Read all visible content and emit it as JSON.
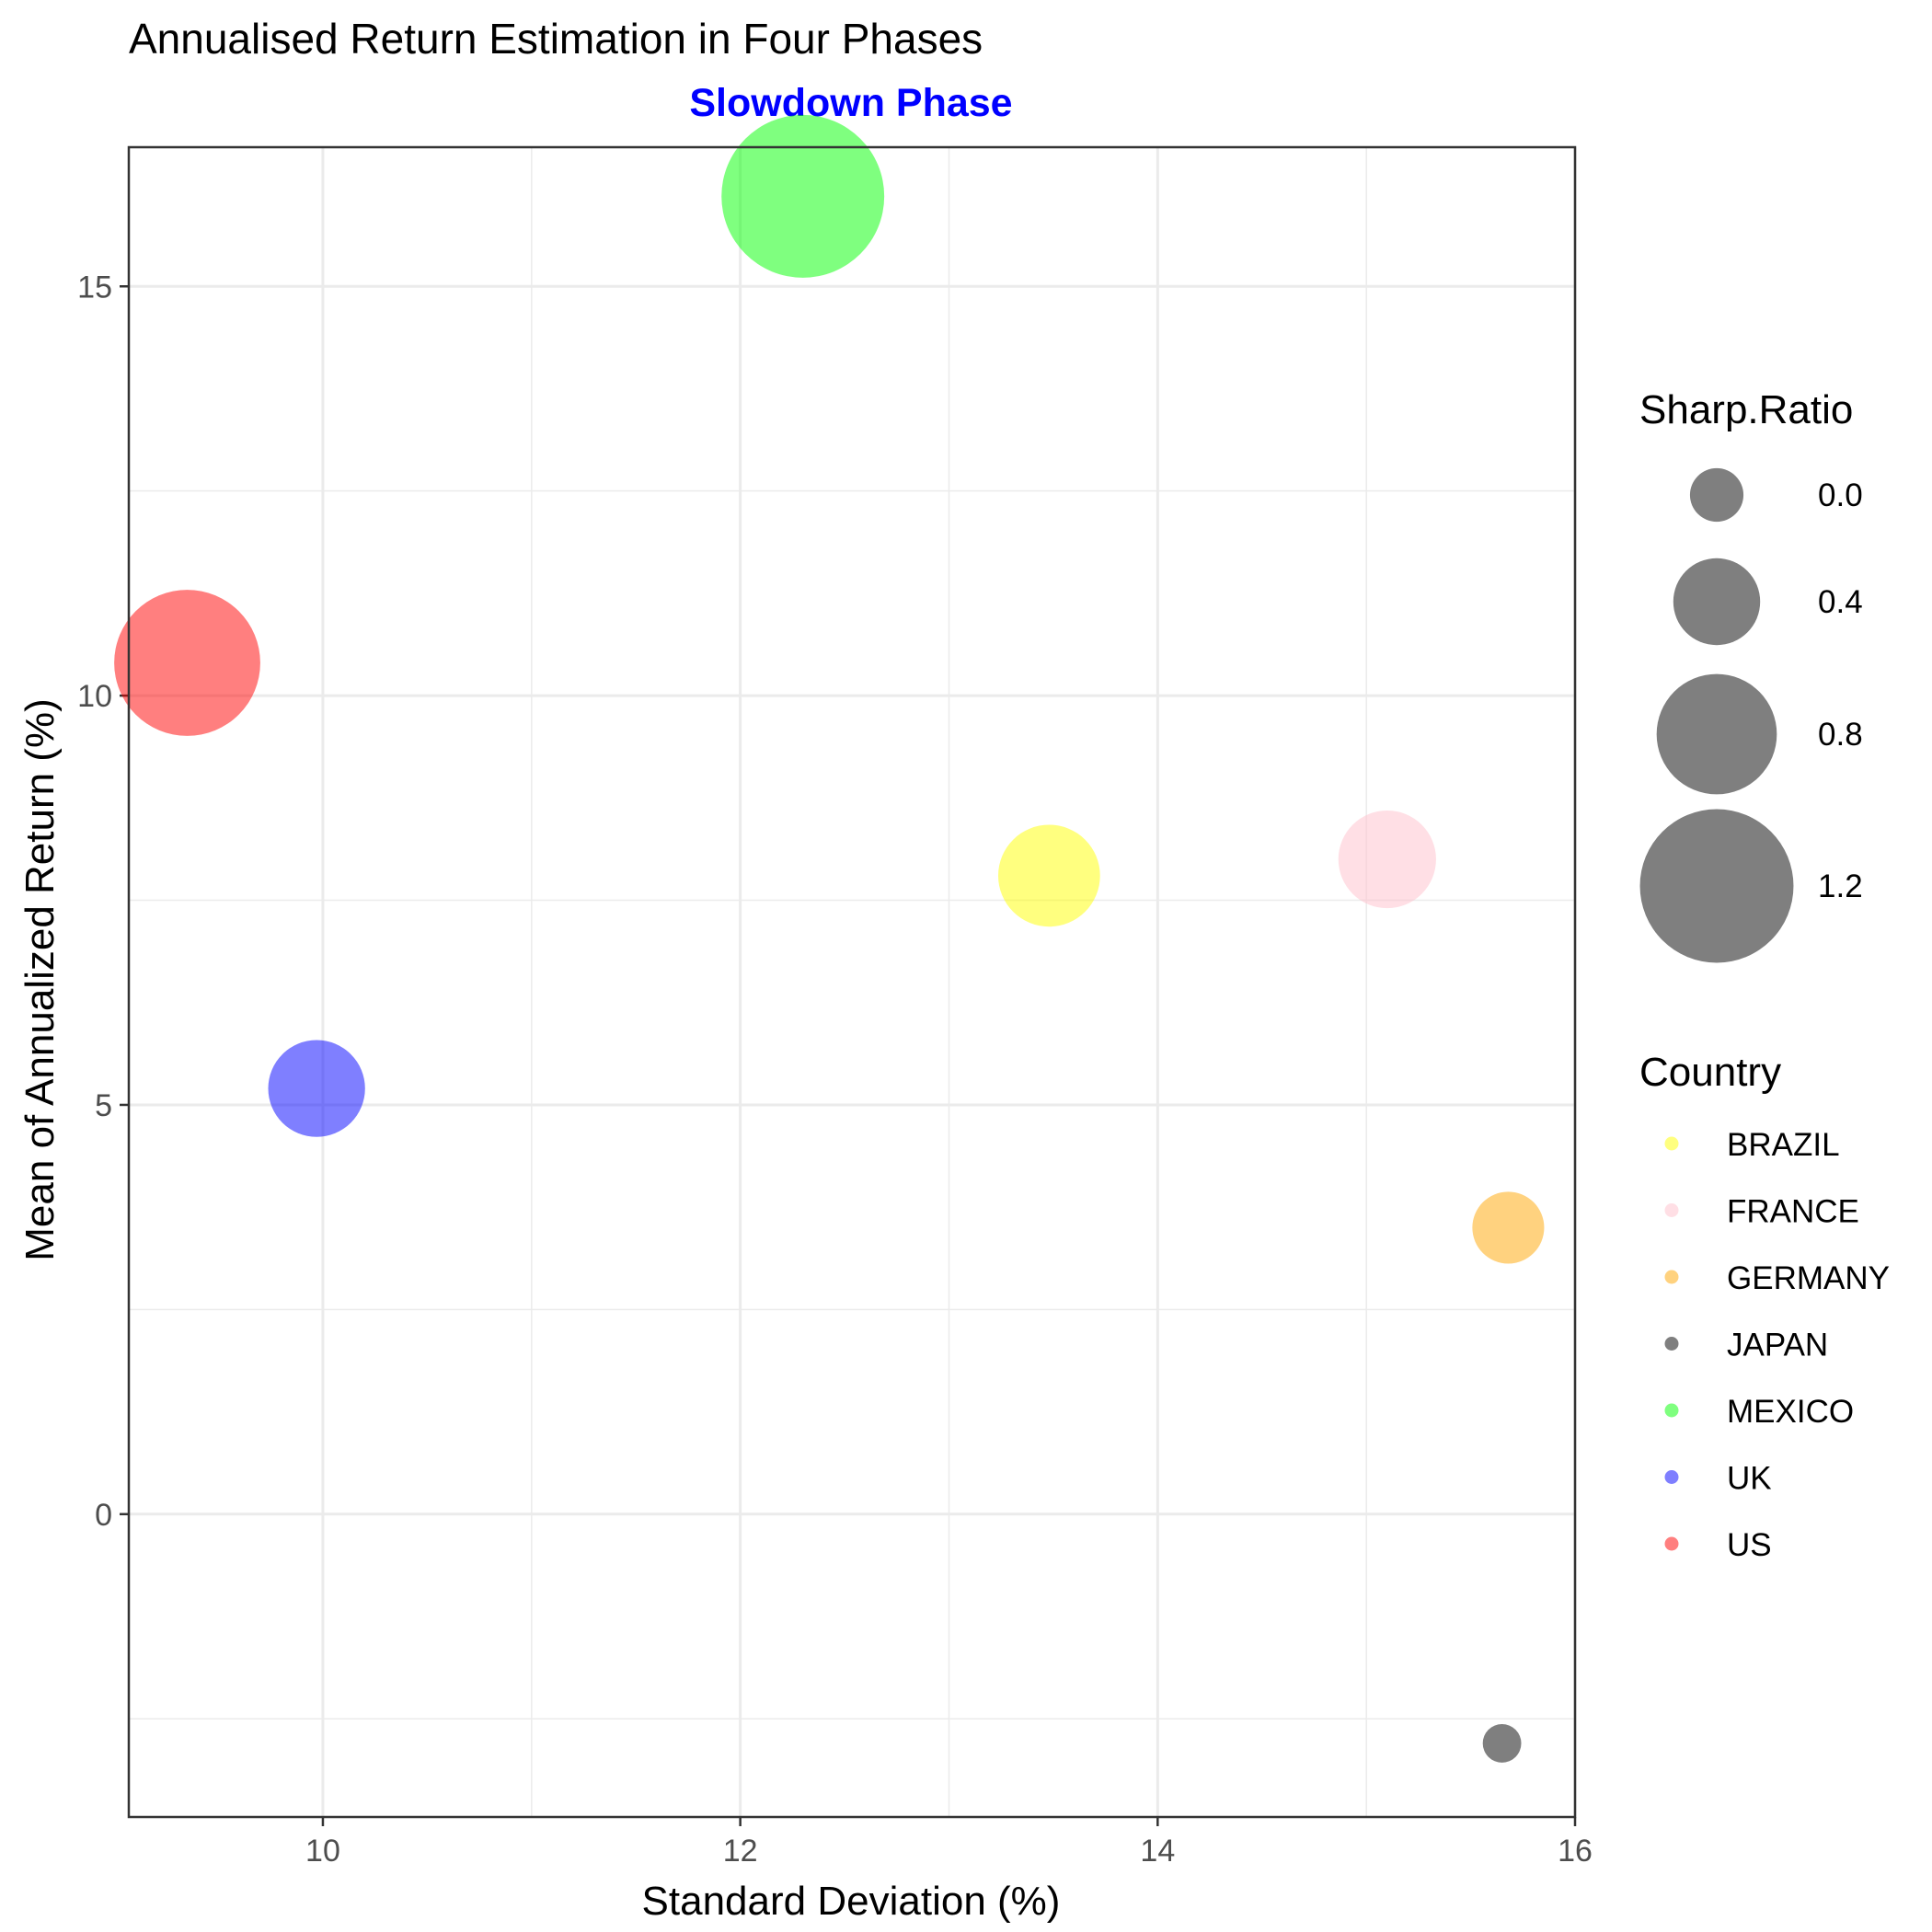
{
  "chart_data": {
    "type": "scatter",
    "title": "Annualised Return Estimation in Four Phases",
    "subtitle": "Slowdown Phase",
    "xlabel": "Standard Deviation (%)",
    "ylabel": "Mean of Annualized Return (%)",
    "xlim": [
      9.07,
      16.0
    ],
    "ylim": [
      -3.7,
      16.7
    ],
    "x_ticks": [
      10,
      12,
      14,
      16
    ],
    "y_ticks": [
      0,
      5,
      10,
      15
    ],
    "grid": true,
    "legend_position": "right",
    "size_legend": {
      "title": "Sharp.Ratio",
      "values": [
        0.0,
        0.4,
        0.8,
        1.2
      ],
      "labels": [
        "0.0",
        "0.4",
        "0.8",
        "1.2"
      ]
    },
    "color_legend": {
      "title": "Country",
      "entries": [
        {
          "label": "BRAZIL",
          "color": "#ffff00"
        },
        {
          "label": "FRANCE",
          "color": "#ffc0cb"
        },
        {
          "label": "GERMANY",
          "color": "#ffa500"
        },
        {
          "label": "JAPAN",
          "color": "#000000"
        },
        {
          "label": "MEXICO",
          "color": "#00ff00"
        },
        {
          "label": "UK",
          "color": "#0000ff"
        },
        {
          "label": "US",
          "color": "#ff0000"
        }
      ]
    },
    "points": [
      {
        "country": "BRAZIL",
        "x": 13.48,
        "y": 7.8,
        "sharp_ratio": 0.58
      },
      {
        "country": "FRANCE",
        "x": 15.1,
        "y": 8.0,
        "sharp_ratio": 0.53
      },
      {
        "country": "GERMANY",
        "x": 15.68,
        "y": 3.5,
        "sharp_ratio": 0.22
      },
      {
        "country": "JAPAN",
        "x": 15.65,
        "y": -2.8,
        "sharp_ratio": -0.18
      },
      {
        "country": "MEXICO",
        "x": 12.3,
        "y": 16.1,
        "sharp_ratio": 1.31
      },
      {
        "country": "UK",
        "x": 9.97,
        "y": 5.2,
        "sharp_ratio": 0.52
      },
      {
        "country": "US",
        "x": 9.35,
        "y": 10.4,
        "sharp_ratio": 1.11
      }
    ]
  }
}
